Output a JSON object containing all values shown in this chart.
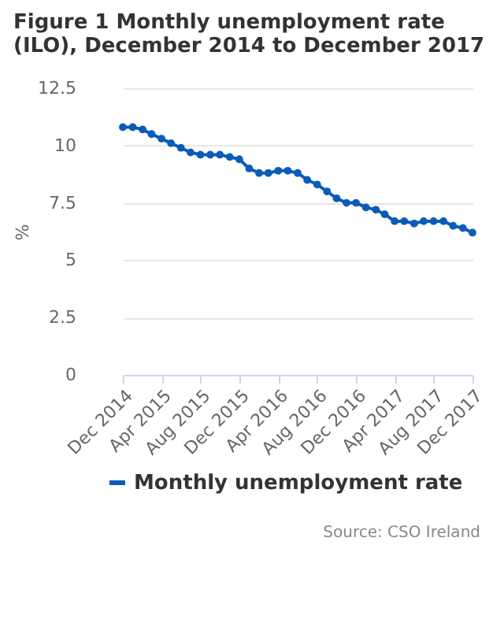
{
  "chart_data": {
    "type": "line",
    "title": "Figure 1 Monthly unemployment rate (ILO), December 2014 to December 2017",
    "ylabel": "%",
    "x": [
      "2014-12",
      "2015-01",
      "2015-02",
      "2015-03",
      "2015-04",
      "2015-05",
      "2015-06",
      "2015-07",
      "2015-08",
      "2015-09",
      "2015-10",
      "2015-11",
      "2015-12",
      "2016-01",
      "2016-02",
      "2016-03",
      "2016-04",
      "2016-05",
      "2016-06",
      "2016-07",
      "2016-08",
      "2016-09",
      "2016-10",
      "2016-11",
      "2016-12",
      "2017-01",
      "2017-02",
      "2017-03",
      "2017-04",
      "2017-05",
      "2017-06",
      "2017-07",
      "2017-08",
      "2017-09",
      "2017-10",
      "2017-11",
      "2017-12"
    ],
    "series": [
      {
        "name": "Monthly unemployment rate",
        "color": "#0b5cb8",
        "values": [
          10.8,
          10.8,
          10.7,
          10.5,
          10.3,
          10.1,
          9.9,
          9.7,
          9.6,
          9.6,
          9.6,
          9.5,
          9.4,
          9.0,
          8.8,
          8.8,
          8.9,
          8.9,
          8.8,
          8.5,
          8.3,
          8.0,
          7.7,
          7.5,
          7.5,
          7.3,
          7.2,
          7.0,
          6.7,
          6.7,
          6.6,
          6.7,
          6.7,
          6.7,
          6.5,
          6.4,
          6.2
        ]
      }
    ],
    "xlim": [
      "2014-12",
      "2017-12"
    ],
    "xticks": [
      {
        "value": "2014-12",
        "label": "Dec 2014"
      },
      {
        "value": "2015-04",
        "label": "Apr 2015"
      },
      {
        "value": "2015-08",
        "label": "Aug 2015"
      },
      {
        "value": "2015-12",
        "label": "Dec 2015"
      },
      {
        "value": "2016-04",
        "label": "Apr 2016"
      },
      {
        "value": "2016-08",
        "label": "Aug 2016"
      },
      {
        "value": "2016-12",
        "label": "Dec 2016"
      },
      {
        "value": "2017-04",
        "label": "Apr 2017"
      },
      {
        "value": "2017-08",
        "label": "Aug 2017"
      },
      {
        "value": "2017-12",
        "label": "Dec 2017"
      }
    ],
    "ylim": [
      0,
      12.5
    ],
    "yticks": [
      0,
      2.5,
      5,
      7.5,
      10,
      12.5
    ],
    "grid": "y",
    "legend": "bottom",
    "marker": "circle",
    "line_style": "solid",
    "annotations": [
      "Source: CSO Ireland"
    ]
  }
}
